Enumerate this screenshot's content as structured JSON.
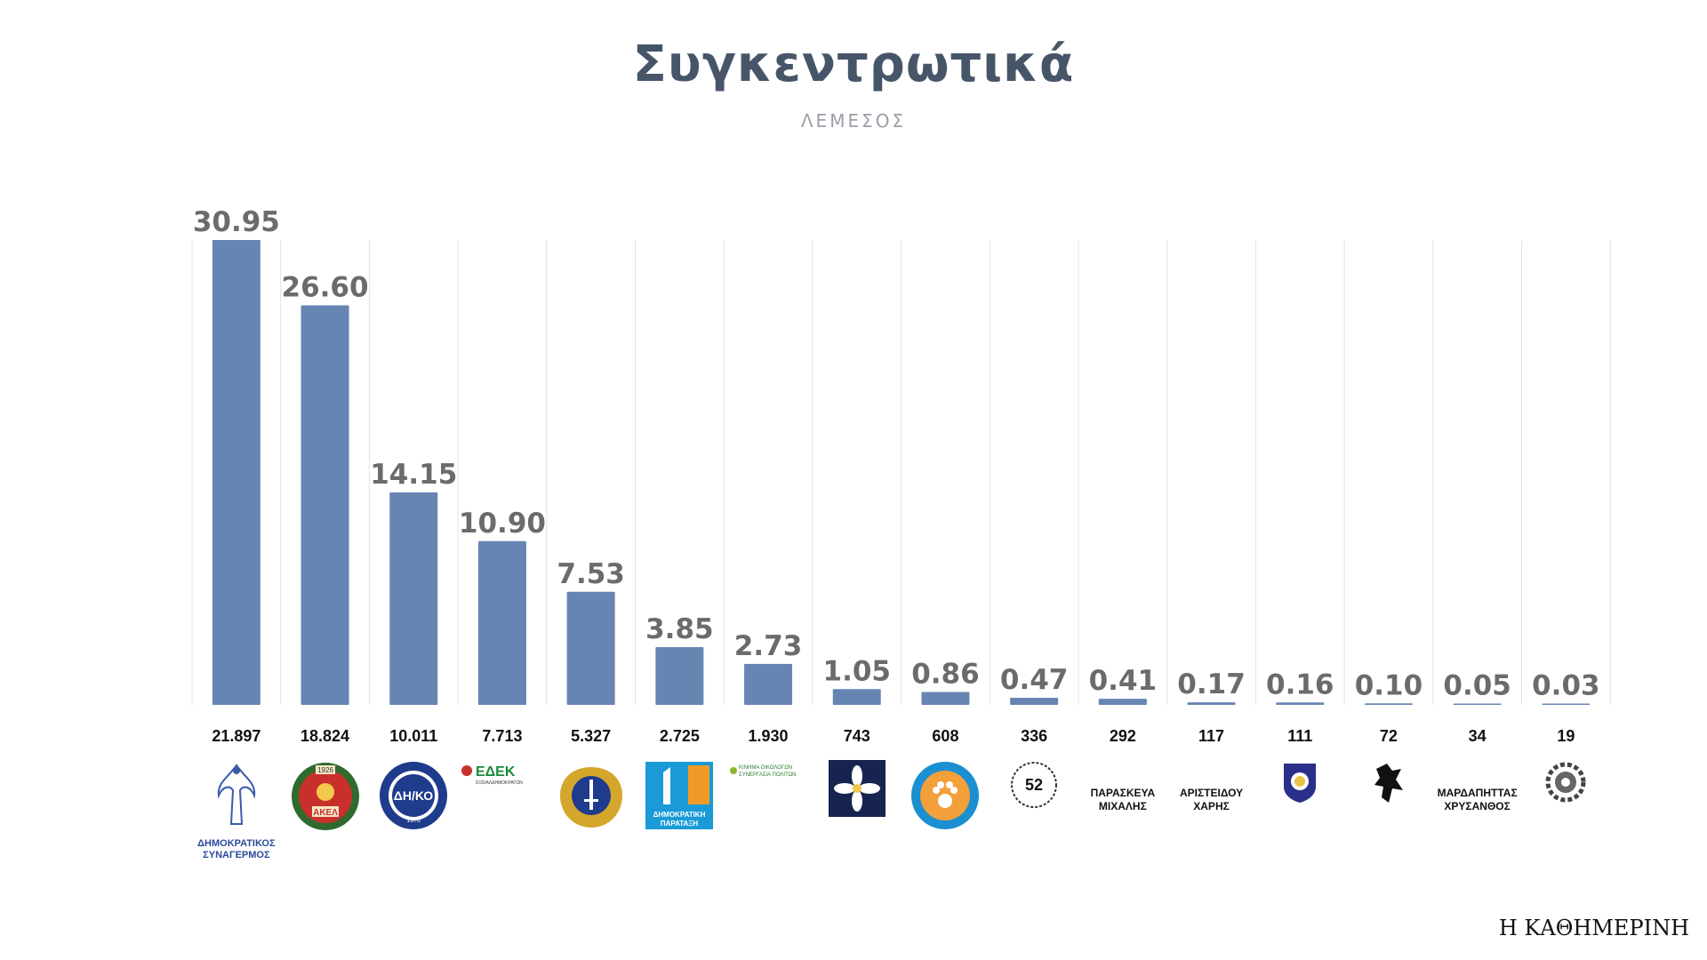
{
  "header": {
    "title": "Συγκεντρωτικά",
    "subtitle": "ΛΕΜΕΣΟΣ"
  },
  "chart_data": {
    "type": "bar",
    "title": "Συγκεντρωτικά",
    "subtitle": "ΛΕΜΕΣΟΣ",
    "bar_color": "#6785b3",
    "value_label_color": "#6b6b6b",
    "percentages": [
      30.95,
      26.6,
      14.15,
      10.9,
      7.53,
      3.85,
      2.73,
      1.05,
      0.86,
      0.47,
      0.41,
      0.17,
      0.16,
      0.1,
      0.05,
      0.03
    ],
    "percentage_labels": [
      "30.95",
      "26.60",
      "14.15",
      "10.90",
      "7.53",
      "3.85",
      "2.73",
      "1.05",
      "0.86",
      "0.47",
      "0.41",
      "0.17",
      "0.16",
      "0.10",
      "0.05",
      "0.03"
    ],
    "votes": [
      "21.897",
      "18.824",
      "10.011",
      "7.713",
      "5.327",
      "2.725",
      "1.930",
      "743",
      "608",
      "336",
      "292",
      "117",
      "111",
      "72",
      "34",
      "19"
    ],
    "ylim": [
      0,
      30.95
    ],
    "grid": "vertical-lines",
    "categories": [
      {
        "logo": "disy-logo",
        "caption": "ΔΗΜΟΚΡΑΤΙΚΟΣ ΣΥΝΑΓΕΡΜΟΣ"
      },
      {
        "logo": "akel-logo",
        "caption": "ΑΚΕΛ"
      },
      {
        "logo": "diko-logo",
        "caption": "ΔΗ/ΚΟ"
      },
      {
        "logo": "edek-logo",
        "caption": "ΕΔΕΚ"
      },
      {
        "logo": "elam-logo",
        "caption": ""
      },
      {
        "logo": "dipa-logo",
        "caption": "ΔΗΜΟΚΡΑΤΙΚΗ ΠΑΡΑΤΑΞΗ"
      },
      {
        "logo": "ecologists-logo",
        "caption": "ΚΙΝΗΜΑ ΟΙΚΟΛΟΓΩΝ ΣΥΝΕΡΓΑΣΙΑ ΠΟΛΙΤΩΝ"
      },
      {
        "logo": "flower-logo",
        "caption": ""
      },
      {
        "logo": "animal-party-logo",
        "caption": ""
      },
      {
        "logo": "circle-52-logo",
        "caption": ""
      },
      {
        "logo": "",
        "caption": "ΠΑΡΑΣΚΕΥΑ ΜΙΧΑΛΗΣ"
      },
      {
        "logo": "",
        "caption": "ΑΡΙΣΤΕΙΔΟΥ ΧΑΡΗΣ"
      },
      {
        "logo": "shield-logo",
        "caption": ""
      },
      {
        "logo": "lion-logo",
        "caption": ""
      },
      {
        "logo": "",
        "caption": "ΜΑΡΔΑΠΗΤΤΑΣ ΧΡΥΣΑΝΘΟΣ"
      },
      {
        "logo": "gear-logo",
        "caption": ""
      }
    ]
  },
  "footer": {
    "brand": "Η ΚΑΘΗΜΕΡΙΝΗ"
  }
}
